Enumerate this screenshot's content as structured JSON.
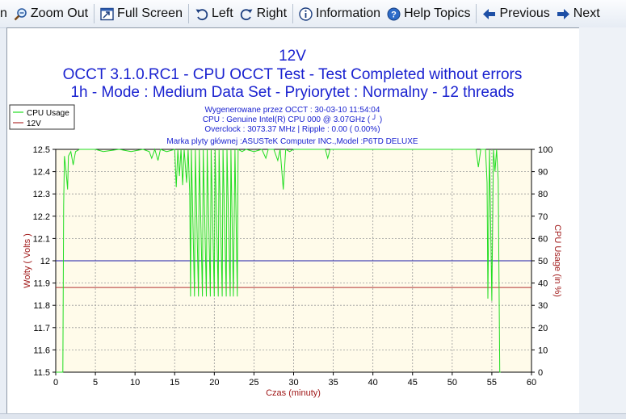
{
  "toolbar": {
    "zoom_out": "Zoom Out",
    "full_screen": "Full Screen",
    "left": "Left",
    "right": "Right",
    "information": "Information",
    "help_topics": "Help Topics",
    "previous": "Previous",
    "next": "Next",
    "partial_left": "n"
  },
  "chart_data": {
    "type": "line",
    "title": "12V",
    "subtitle1": "OCCT 3.1.0.RC1 - CPU OCCT Test - Test Completed without errors",
    "subtitle2": "1h - Mode : Medium Data Set - Pryiorytet : Normalny - 12 threads",
    "info_lines": [
      "Wygenerowane przez OCCT : 30-03-10 11:54:04",
      "CPU : Genuine Intel(R) CPU 000 @ 3.07GHz ( ╯ )",
      "Overclock : 3073.37 MHz | Ripple : 0.00 ( 0.00%)",
      "Marka plyty głównej :ASUSTeK Computer INC.,Model :P6TD DELUXE"
    ],
    "legend": [
      "CPU Usage",
      "12V"
    ],
    "legend_position": "top-left",
    "xlabel": "Czas (minuty)",
    "ylabel": "Wolty ( Volts )",
    "y2label": "CPU Usage (in %)",
    "xlim": [
      0,
      60
    ],
    "ylim": [
      11.5,
      12.5
    ],
    "y2lim": [
      0,
      100
    ],
    "x_ticks": [
      "0",
      "5",
      "10",
      "15",
      "20",
      "25",
      "30",
      "35",
      "40",
      "45",
      "50",
      "55",
      "60"
    ],
    "y_ticks": [
      "11.5",
      "11.6",
      "11.7",
      "11.8",
      "11.9",
      "12",
      "12.1",
      "12.2",
      "12.3",
      "12.4",
      "12.5"
    ],
    "y2_ticks": [
      "0",
      "10",
      "20",
      "30",
      "40",
      "50",
      "60",
      "70",
      "80",
      "90",
      "100"
    ],
    "grid": true,
    "reference_line_12": 12.0,
    "series": [
      {
        "name": "12V",
        "color": "#b03030",
        "points": [
          [
            0,
            11.88
          ],
          [
            60,
            11.88
          ]
        ]
      },
      {
        "name": "CPU Usage",
        "color": "#22dd22",
        "axis": "right",
        "points": [
          [
            0,
            0
          ],
          [
            0.9,
            0
          ],
          [
            1.0,
            75
          ],
          [
            1.1,
            97
          ],
          [
            1.3,
            90
          ],
          [
            1.5,
            82
          ],
          [
            1.6,
            97
          ],
          [
            1.9,
            99
          ],
          [
            2.2,
            93
          ],
          [
            2.5,
            99
          ],
          [
            3.0,
            100
          ],
          [
            5.0,
            100
          ],
          [
            6.0,
            99
          ],
          [
            8.0,
            100
          ],
          [
            9.5,
            99
          ],
          [
            11.0,
            100
          ],
          [
            11.8,
            99
          ],
          [
            12.1,
            96
          ],
          [
            12.5,
            100
          ],
          [
            12.9,
            95
          ],
          [
            13.2,
            100
          ],
          [
            14.0,
            99
          ],
          [
            15.0,
            100
          ],
          [
            15.2,
            83
          ],
          [
            15.4,
            100
          ],
          [
            15.6,
            88
          ],
          [
            15.8,
            100
          ],
          [
            16.0,
            84
          ],
          [
            16.2,
            100
          ],
          [
            16.5,
            85
          ],
          [
            16.7,
            100
          ],
          [
            16.9,
            80
          ],
          [
            17.0,
            34
          ],
          [
            17.1,
            100
          ],
          [
            17.5,
            34
          ],
          [
            17.6,
            100
          ],
          [
            18.0,
            34
          ],
          [
            18.1,
            100
          ],
          [
            18.5,
            34
          ],
          [
            18.6,
            100
          ],
          [
            19.0,
            34
          ],
          [
            19.1,
            100
          ],
          [
            19.5,
            34
          ],
          [
            19.6,
            100
          ],
          [
            20.0,
            34
          ],
          [
            20.1,
            100
          ],
          [
            20.5,
            34
          ],
          [
            20.6,
            100
          ],
          [
            21.0,
            34
          ],
          [
            21.1,
            100
          ],
          [
            21.5,
            34
          ],
          [
            21.6,
            100
          ],
          [
            22.0,
            34
          ],
          [
            22.1,
            100
          ],
          [
            22.4,
            34
          ],
          [
            22.6,
            100
          ],
          [
            22.9,
            34
          ],
          [
            23.0,
            100
          ],
          [
            23.5,
            99
          ],
          [
            24.0,
            100
          ],
          [
            25.0,
            99
          ],
          [
            26.0,
            100
          ],
          [
            26.5,
            96
          ],
          [
            26.8,
            100
          ],
          [
            27.5,
            100
          ],
          [
            28.0,
            95
          ],
          [
            28.3,
            100
          ],
          [
            28.7,
            82
          ],
          [
            29.0,
            100
          ],
          [
            29.5,
            99
          ],
          [
            30.0,
            100
          ],
          [
            34.0,
            100
          ],
          [
            34.3,
            96
          ],
          [
            34.6,
            100
          ],
          [
            40.0,
            100
          ],
          [
            48.0,
            100
          ],
          [
            53.0,
            100
          ],
          [
            53.3,
            92
          ],
          [
            53.6,
            100
          ],
          [
            54.2,
            100
          ],
          [
            54.4,
            85
          ],
          [
            54.5,
            33
          ],
          [
            54.7,
            100
          ],
          [
            55.0,
            32
          ],
          [
            55.2,
            100
          ],
          [
            55.4,
            90
          ],
          [
            55.6,
            100
          ],
          [
            55.8,
            86
          ],
          [
            56.0,
            0
          ],
          [
            56.1,
            0
          ]
        ]
      }
    ]
  }
}
